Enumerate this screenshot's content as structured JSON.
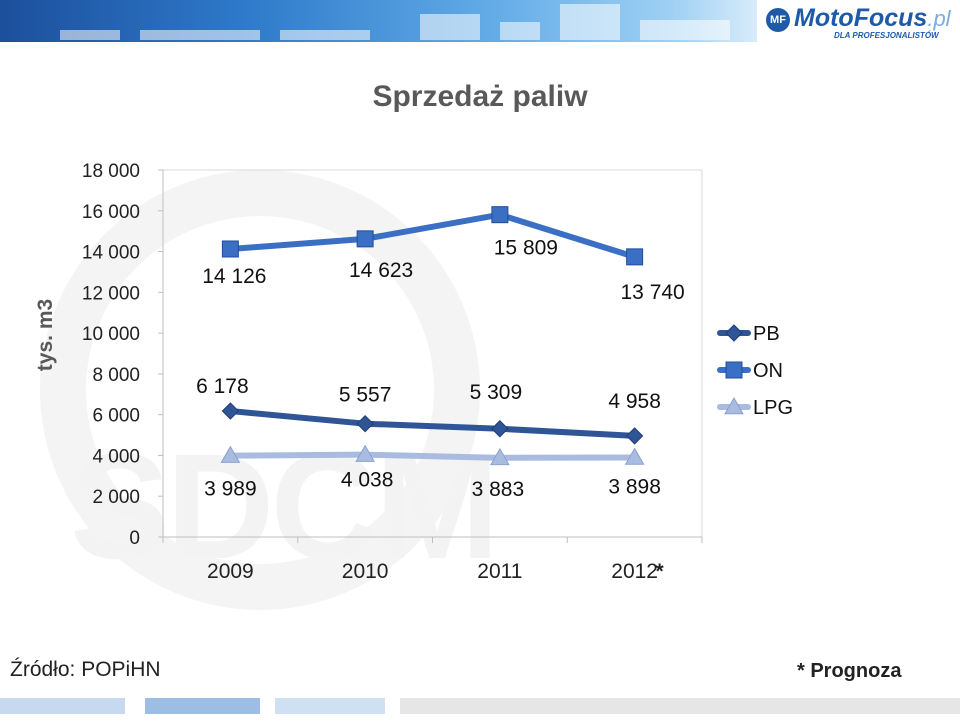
{
  "branding": {
    "logo_name": "MotoFocus",
    "logo_ext": ".pl",
    "logo_tagline": "DLA PROFESJONALISTÓW",
    "logo_mark": "MF",
    "watermark": "SDCM"
  },
  "colors": {
    "pb": "#2f5597",
    "on": "#3a6fc4",
    "lpg": "#a9bcdf",
    "accent": "#1e5aa8"
  },
  "notes": {
    "source": "Źródło: POPiHN",
    "forecast": "* Prognoza",
    "asterisk": "*"
  },
  "chart_data": {
    "type": "line",
    "title": "Sprzedaż paliw",
    "ylabel": "tys. m3",
    "xlabel": "",
    "categories": [
      "2009",
      "2010",
      "2011",
      "2012"
    ],
    "ylim": [
      0,
      18000
    ],
    "ytick_step": 2000,
    "yticks": [
      "0",
      "2 000",
      "4 000",
      "6 000",
      "8 000",
      "10 000",
      "12 000",
      "14 000",
      "16 000",
      "18 000"
    ],
    "grid": false,
    "legend": "right",
    "series": [
      {
        "name": "PB",
        "values": [
          6178,
          5557,
          5309,
          4958
        ],
        "labels": [
          "6 178",
          "5 557",
          "5 309",
          "4 958"
        ],
        "marker": "diamond",
        "color": "#2f5597"
      },
      {
        "name": "ON",
        "values": [
          14126,
          14623,
          15809,
          13740
        ],
        "labels": [
          "14 126",
          "14 623",
          "15 809",
          "13 740"
        ],
        "marker": "square",
        "color": "#3a6fc4"
      },
      {
        "name": "LPG",
        "values": [
          3989,
          4038,
          3883,
          3898
        ],
        "labels": [
          "3 989",
          "4 038",
          "3 883",
          "3 898"
        ],
        "marker": "triangle",
        "color": "#a9bcdf"
      }
    ]
  }
}
